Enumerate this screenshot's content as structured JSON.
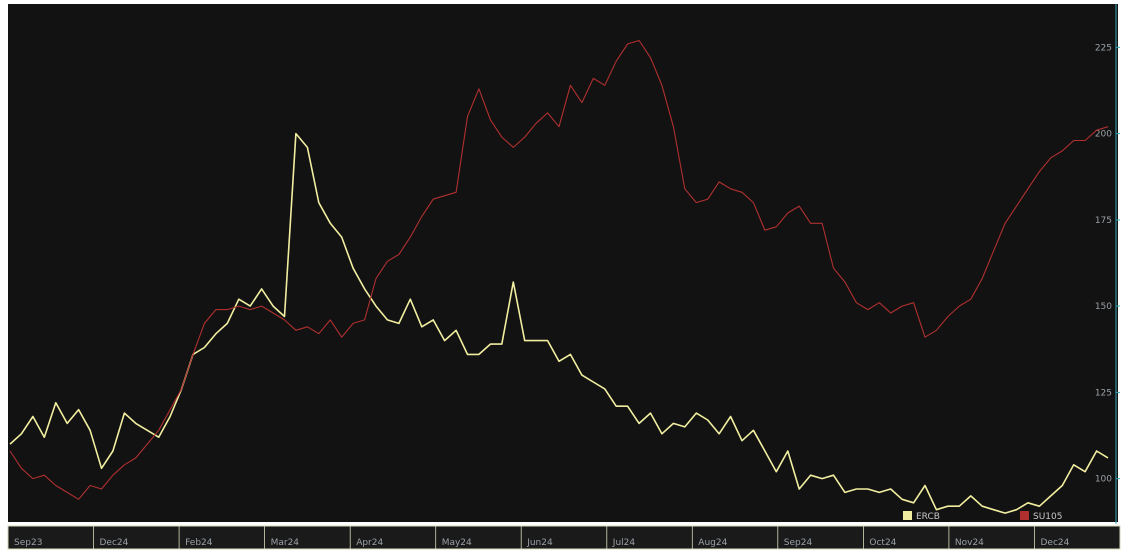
{
  "chart_data": {
    "type": "line",
    "grid": false,
    "legend_placement": "bottom-right",
    "x_tick_labels": [
      "Sep23",
      "Dec24",
      "Feb24",
      "Mar24",
      "Apr24",
      "May24",
      "Jun24",
      "Jul24",
      "Aug24",
      "Sep24",
      "Oct24",
      "Nov24",
      "Dec24"
    ],
    "y_tick_labels": [
      "225",
      "200",
      "175",
      "150",
      "125",
      "100"
    ],
    "ylim": [
      88,
      237
    ],
    "colors": {
      "background": "#121212",
      "frame": "#d8d8b8",
      "axis": "#3aa8b8"
    },
    "series": [
      {
        "name": "ERCB",
        "color": "#f2eea0",
        "values": [
          110,
          113,
          118,
          112,
          122,
          116,
          120,
          114,
          103,
          108,
          119,
          116,
          114,
          112,
          118,
          126,
          136,
          138,
          142,
          145,
          152,
          150,
          155,
          150,
          147,
          200,
          196,
          180,
          174,
          170,
          161,
          155,
          150,
          146,
          145,
          152,
          144,
          146,
          140,
          143,
          136,
          136,
          139,
          139,
          157,
          140,
          140,
          140,
          134,
          136,
          130,
          128,
          126,
          121,
          121,
          116,
          119,
          113,
          116,
          115,
          119,
          117,
          113,
          118,
          111,
          114,
          108,
          102,
          108,
          97,
          101,
          100,
          101,
          96,
          97,
          97,
          96,
          97,
          94,
          93,
          98,
          91,
          92,
          92,
          95,
          92,
          91,
          90,
          91,
          93,
          92,
          95,
          98,
          104,
          102,
          108,
          106
        ]
      },
      {
        "name": "SU105",
        "color": "#b03030",
        "values": [
          108,
          103,
          100,
          101,
          98,
          96,
          94,
          98,
          97,
          101,
          104,
          106,
          110,
          114,
          120,
          126,
          136,
          145,
          149,
          149,
          150,
          149,
          150,
          148,
          146,
          143,
          144,
          142,
          146,
          141,
          145,
          146,
          158,
          163,
          165,
          170,
          176,
          181,
          182,
          183,
          205,
          213,
          204,
          199,
          196,
          199,
          203,
          206,
          202,
          214,
          209,
          216,
          214,
          221,
          226,
          227,
          222,
          214,
          202,
          184,
          180,
          181,
          186,
          184,
          183,
          180,
          172,
          173,
          177,
          179,
          174,
          174,
          161,
          157,
          151,
          149,
          151,
          148,
          150,
          151,
          141,
          143,
          147,
          150,
          152,
          158,
          166,
          174,
          179,
          184,
          189,
          193,
          195,
          198,
          198,
          201,
          202
        ]
      }
    ]
  }
}
